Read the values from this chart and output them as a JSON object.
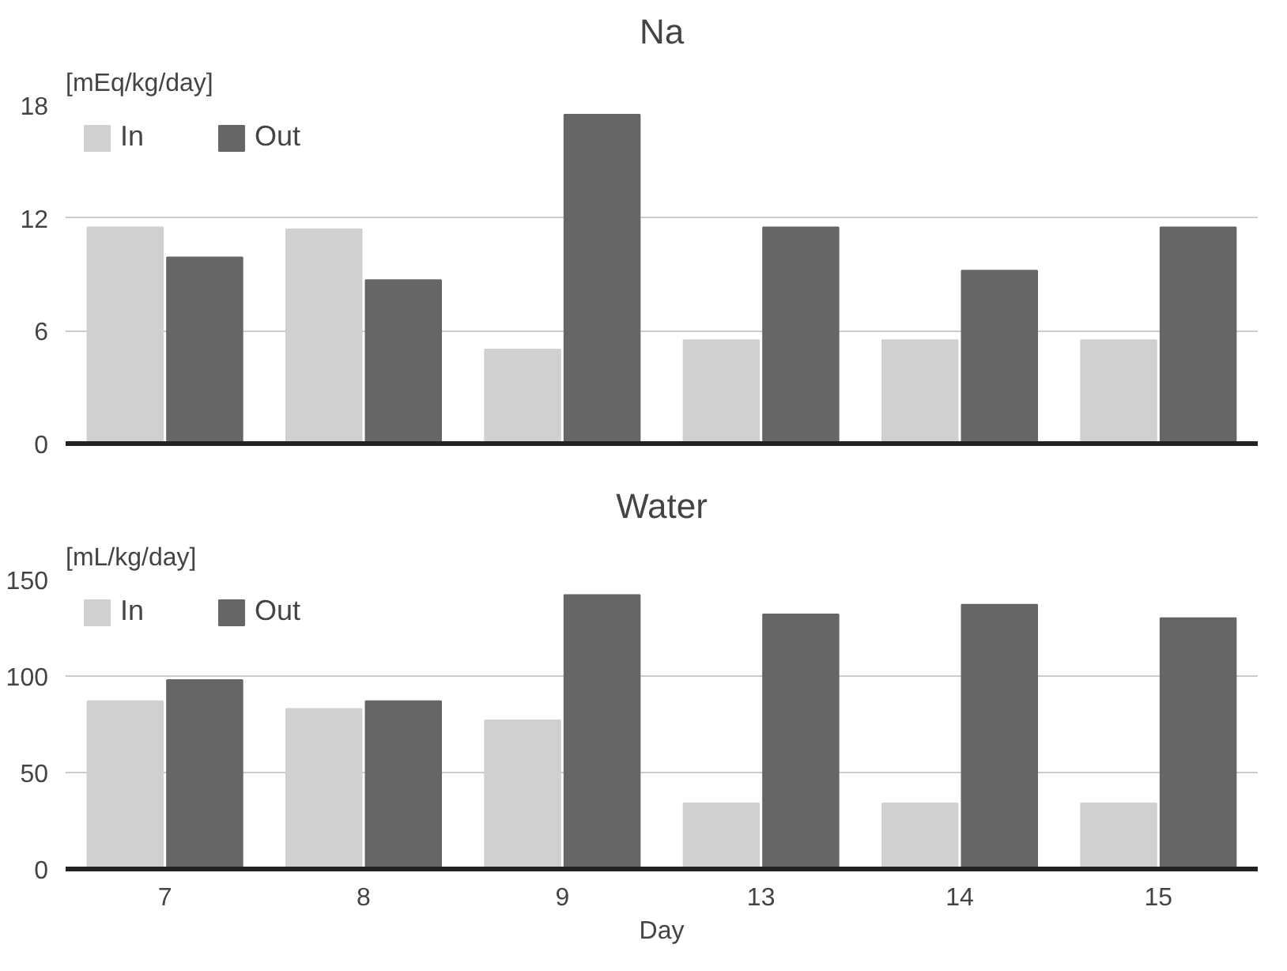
{
  "chart_data": [
    {
      "type": "bar",
      "title": "Na",
      "ylabel": "[mEq/kg/day]",
      "categories": [
        "7",
        "8",
        "9",
        "13",
        "14",
        "15"
      ],
      "tick_labels": "y",
      "ylim": [
        0,
        18
      ],
      "yticks": [
        0,
        6,
        12,
        18
      ],
      "grid": "y",
      "legend": "top left",
      "series": [
        {
          "name": "In",
          "color": "#d0d0d0",
          "values": [
            11.5,
            11.4,
            5.0,
            5.5,
            5.5,
            5.5
          ]
        },
        {
          "name": "Out",
          "color": "#666666",
          "values": [
            9.9,
            8.7,
            17.5,
            11.5,
            9.2,
            11.5
          ]
        }
      ]
    },
    {
      "type": "bar",
      "title": "Water",
      "ylabel": "[mL/kg/day]",
      "xlabel": "Day",
      "categories": [
        "7",
        "8",
        "9",
        "13",
        "14",
        "15"
      ],
      "ylim": [
        0,
        150
      ],
      "yticks": [
        0,
        50,
        100,
        150
      ],
      "grid": "y",
      "legend": "top left",
      "series": [
        {
          "name": "In",
          "color": "#d0d0d0",
          "values": [
            87,
            83,
            77,
            34,
            34,
            34
          ]
        },
        {
          "name": "Out",
          "color": "#666666",
          "values": [
            98,
            87,
            142,
            132,
            137,
            130
          ]
        }
      ]
    }
  ]
}
